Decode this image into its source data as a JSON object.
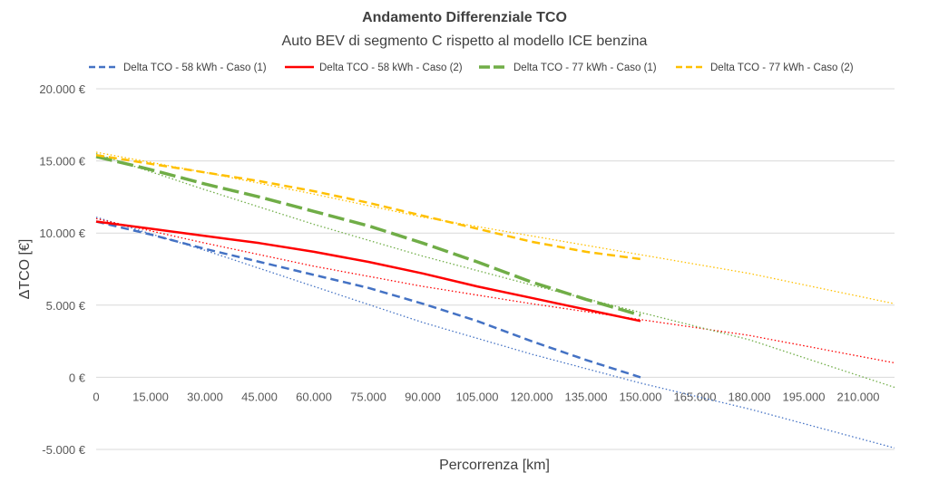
{
  "chart_data": {
    "type": "line",
    "title": "Andamento Differenziale TCO",
    "subtitle": "Auto BEV di segmento C rispetto al modello ICE benzina",
    "xlabel": "Percorrenza [km]",
    "ylabel": "ΔTCO [€]",
    "xlim": [
      0,
      220000
    ],
    "ylim": [
      -5000,
      20000
    ],
    "x_ticks": [
      0,
      15000,
      30000,
      45000,
      60000,
      75000,
      90000,
      105000,
      120000,
      135000,
      150000,
      165000,
      180000,
      195000,
      210000
    ],
    "x_tick_labels": [
      "0",
      "15.000",
      "30.000",
      "45.000",
      "60.000",
      "75.000",
      "90.000",
      "105.000",
      "120.000",
      "135.000",
      "150.000",
      "165.000",
      "180.000",
      "195.000",
      "210.000"
    ],
    "y_ticks": [
      -5000,
      0,
      5000,
      10000,
      15000,
      20000
    ],
    "y_tick_labels": [
      "-5.000 €",
      "0 €",
      "5.000 €",
      "10.000 €",
      "15.000 €",
      "20.000 €"
    ],
    "grid": "horizontal",
    "legend_position": "top",
    "series": [
      {
        "name": "Delta TCO - 58 kWh - Caso (1)",
        "color": "#4472C4",
        "style": "dashed",
        "x": [
          0,
          15000,
          30000,
          45000,
          60000,
          75000,
          90000,
          105000,
          120000,
          135000,
          150000
        ],
        "y": [
          10800,
          9900,
          8900,
          8000,
          7100,
          6200,
          5100,
          3900,
          2500,
          1200,
          0
        ]
      },
      {
        "name": "Delta TCO - 58 kWh - Caso (2)",
        "color": "#FF0000",
        "style": "solid",
        "x": [
          0,
          15000,
          30000,
          45000,
          60000,
          75000,
          90000,
          105000,
          120000,
          135000,
          150000
        ],
        "y": [
          10800,
          10300,
          9800,
          9300,
          8700,
          8000,
          7200,
          6300,
          5500,
          4700,
          3900
        ]
      },
      {
        "name": "Delta TCO - 77 kWh - Caso (1)",
        "color": "#70AD47",
        "style": "long-dashed",
        "x": [
          0,
          15000,
          30000,
          45000,
          60000,
          75000,
          90000,
          105000,
          120000,
          135000,
          150000
        ],
        "y": [
          15300,
          14400,
          13400,
          12500,
          11500,
          10500,
          9300,
          8000,
          6600,
          5400,
          4300
        ]
      },
      {
        "name": "Delta TCO - 77 kWh - Caso (2)",
        "color": "#FFC000",
        "style": "dashed",
        "x": [
          0,
          15000,
          30000,
          45000,
          60000,
          75000,
          90000,
          105000,
          120000,
          135000,
          150000
        ],
        "y": [
          15400,
          14800,
          14200,
          13600,
          12900,
          12100,
          11200,
          10300,
          9400,
          8700,
          8200
        ]
      }
    ],
    "trendlines": [
      {
        "color": "#4472C4",
        "x": [
          0,
          30000,
          60000,
          90000,
          120000,
          150000,
          180000,
          220000
        ],
        "y": [
          11100,
          8800,
          6300,
          3800,
          1600,
          -400,
          -2200,
          -4900
        ]
      },
      {
        "color": "#FF0000",
        "x": [
          0,
          30000,
          60000,
          90000,
          120000,
          150000,
          180000,
          220000
        ],
        "y": [
          11000,
          9300,
          7700,
          6300,
          5100,
          4000,
          2900,
          1000
        ]
      },
      {
        "color": "#70AD47",
        "x": [
          0,
          30000,
          60000,
          90000,
          120000,
          150000,
          180000,
          220000
        ],
        "y": [
          15500,
          13000,
          10600,
          8400,
          6400,
          4500,
          2600,
          -700
        ]
      },
      {
        "color": "#FFC000",
        "x": [
          0,
          30000,
          60000,
          90000,
          120000,
          150000,
          180000,
          220000
        ],
        "y": [
          15600,
          14200,
          12700,
          11100,
          9800,
          8500,
          7200,
          5100
        ]
      }
    ]
  }
}
